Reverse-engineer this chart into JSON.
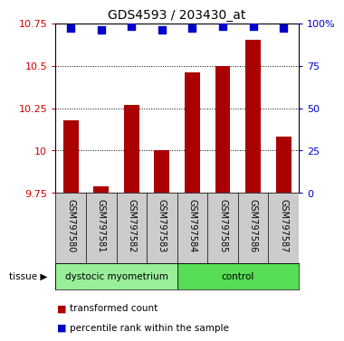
{
  "title": "GDS4593 / 203430_at",
  "categories": [
    "GSM797580",
    "GSM797581",
    "GSM797582",
    "GSM797583",
    "GSM797584",
    "GSM797585",
    "GSM797586",
    "GSM797587"
  ],
  "bar_values": [
    10.18,
    9.79,
    10.27,
    10.0,
    10.46,
    10.5,
    10.65,
    10.08
  ],
  "bar_base": 9.75,
  "percentile_values": [
    97,
    96,
    98,
    96,
    97,
    98,
    98,
    97
  ],
  "percentile_scale_max": 100,
  "ylim": [
    9.75,
    10.75
  ],
  "yticks": [
    9.75,
    10.0,
    10.25,
    10.5,
    10.75
  ],
  "ytick_labels": [
    "9.75",
    "10",
    "10.25",
    "10.5",
    "10.75"
  ],
  "right_yticks": [
    0,
    25,
    50,
    75,
    100
  ],
  "right_ytick_labels": [
    "0",
    "25",
    "50",
    "75",
    "100%"
  ],
  "bar_color": "#aa0000",
  "dot_color": "#0000cc",
  "group1_label": "dystocic myometrium",
  "group2_label": "control",
  "group1_indices": [
    0,
    1,
    2,
    3
  ],
  "group2_indices": [
    4,
    5,
    6,
    7
  ],
  "group1_color": "#99ee99",
  "group2_color": "#55dd55",
  "tissue_label": "tissue",
  "legend_bar_label": "transformed count",
  "legend_dot_label": "percentile rank within the sample",
  "ylabel_color": "#cc0000",
  "right_ylabel_color": "#0000cc",
  "bar_width": 0.5,
  "dot_size": 30,
  "background_color": "#cccccc"
}
